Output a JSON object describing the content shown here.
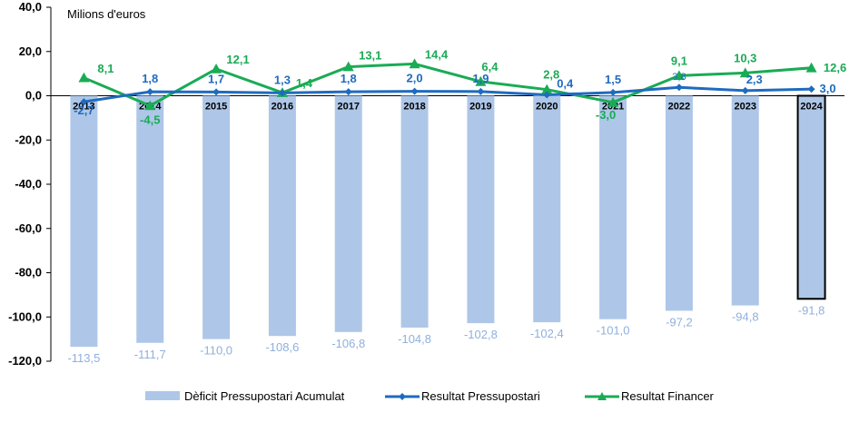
{
  "chart_data": {
    "type": "bar",
    "unit_label": "Milions d'euros",
    "categories": [
      "2013",
      "2014",
      "2015",
      "2016",
      "2017",
      "2018",
      "2019",
      "2020",
      "2021",
      "2022",
      "2023",
      "2024"
    ],
    "ylim": [
      -120,
      40
    ],
    "yticks": [
      40,
      20,
      0,
      -20,
      -40,
      -60,
      -80,
      -100,
      -120
    ],
    "ytick_labels": [
      "40,0",
      "20,0",
      "0,0",
      "-20,0",
      "-40,0",
      "-60,0",
      "-80,0",
      "-100,0",
      "-120,0"
    ],
    "grid": false,
    "legend_position": "bottom",
    "highlighted_category": "2024",
    "series": [
      {
        "name": "Dèficit Pressupostari Acumulat",
        "kind": "bar",
        "color": "#aec7e8",
        "values": [
          -113.5,
          -111.7,
          -110.0,
          -108.6,
          -106.8,
          -104.8,
          -102.8,
          -102.4,
          -101.0,
          -97.2,
          -94.8,
          -91.8
        ],
        "labels": [
          "-113,5",
          "-111,7",
          "-110,0",
          "-108,6",
          "-106,8",
          "-104,8",
          "-102,8",
          "-102,4",
          "-101,0",
          "-97,2",
          "-94,8",
          "-91,8"
        ]
      },
      {
        "name": "Resultat Pressupostari",
        "kind": "line",
        "marker": "diamond",
        "color": "#1f6bbf",
        "values": [
          -2.7,
          1.8,
          1.7,
          1.3,
          1.8,
          2.0,
          1.9,
          0.4,
          1.5,
          3.8,
          2.3,
          3.0
        ],
        "labels": [
          "-2,7",
          "1,8",
          "1,7",
          "1,3",
          "1,8",
          "2,0",
          "1,9",
          "0,4",
          "1,5",
          "3,8",
          "2,3",
          "3,0"
        ]
      },
      {
        "name": "Resultat Financer",
        "kind": "line",
        "marker": "triangle",
        "color": "#1aab55",
        "values": [
          8.1,
          -4.5,
          12.1,
          1.4,
          13.1,
          14.4,
          6.4,
          2.8,
          -3.0,
          9.1,
          10.3,
          12.6
        ],
        "labels": [
          "8,1",
          "-4,5",
          "12,1",
          "1,4",
          "13,1",
          "14,4",
          "6,4",
          "2,8",
          "-3,0",
          "9,1",
          "10,3",
          "12,6"
        ]
      }
    ]
  }
}
